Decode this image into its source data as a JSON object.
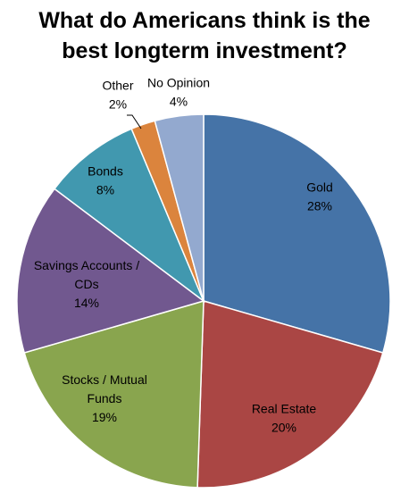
{
  "title_lines": [
    "What do Americans think is the",
    "best longterm investment?"
  ],
  "chart_data": {
    "type": "pie",
    "title": "What do Americans think is the best longterm investment?",
    "slices": [
      {
        "name": "Gold",
        "value": 28,
        "label_lines": [
          "Gold",
          "28%"
        ],
        "color": "#4573A7"
      },
      {
        "name": "Real Estate",
        "value": 20,
        "label_lines": [
          "Real Estate",
          "20%"
        ],
        "color": "#AA4644"
      },
      {
        "name": "Stocks / Mutual Funds",
        "value": 19,
        "label_lines": [
          "Stocks / Mutual",
          "Funds",
          "19%"
        ],
        "color": "#89A54E"
      },
      {
        "name": "Savings Accounts / CDs",
        "value": 14,
        "label_lines": [
          "Savings Accounts /",
          "CDs",
          "14%"
        ],
        "color": "#71588F"
      },
      {
        "name": "Bonds",
        "value": 8,
        "label_lines": [
          "Bonds",
          "8%"
        ],
        "color": "#4198AF"
      },
      {
        "name": "Other",
        "value": 2,
        "label_lines": [
          "Other",
          "2%"
        ],
        "color": "#DB843D"
      },
      {
        "name": "No Opinion",
        "value": 4,
        "label_lines": [
          "No Opinion",
          "4%"
        ],
        "color": "#93A9CF"
      }
    ]
  }
}
